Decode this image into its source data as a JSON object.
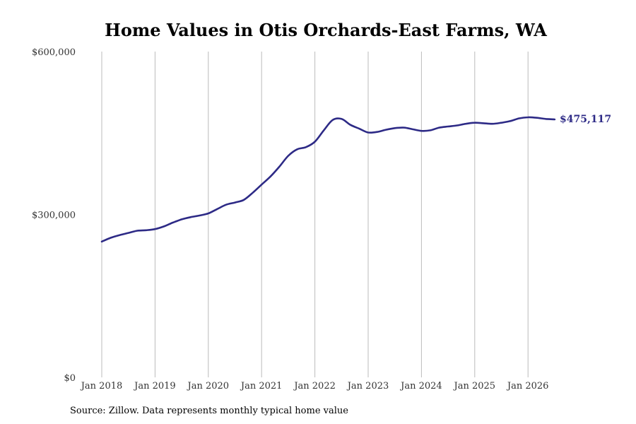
{
  "title": "Home Values in Otis Orchards-East Farms, WA",
  "source": "Source: Zillow. Data represents monthly typical home value",
  "colors": {
    "line": "#2d2a86",
    "grid": "#bbbbbb",
    "text": "#333333"
  },
  "chart_data": {
    "type": "line",
    "title": "Home Values in Otis Orchards-East Farms, WA",
    "xlabel": "",
    "ylabel": "",
    "ylim": [
      0,
      600000
    ],
    "y_ticks": [
      0,
      300000,
      600000
    ],
    "y_tick_labels": [
      "$0",
      "$300,000",
      "$600,000"
    ],
    "x_ticks": [
      2018,
      2019,
      2020,
      2021,
      2022,
      2023,
      2024,
      2025,
      2026
    ],
    "x_tick_labels": [
      "Jan 2018",
      "Jan 2019",
      "Jan 2020",
      "Jan 2021",
      "Jan 2022",
      "Jan 2023",
      "Jan 2024",
      "Jan 2025",
      "Jan 2026"
    ],
    "grid": "vertical",
    "end_label": "$475,117",
    "series": [
      {
        "x": [
          "2018-01",
          "2018-03",
          "2018-05",
          "2018-07",
          "2018-09",
          "2018-11",
          "2019-01",
          "2019-03",
          "2019-05",
          "2019-07",
          "2019-09",
          "2019-11",
          "2020-01",
          "2020-03",
          "2020-05",
          "2020-07",
          "2020-09",
          "2020-11",
          "2021-01",
          "2021-03",
          "2021-05",
          "2021-07",
          "2021-09",
          "2021-11",
          "2022-01",
          "2022-03",
          "2022-05",
          "2022-07",
          "2022-09",
          "2022-11",
          "2023-01",
          "2023-03",
          "2023-05",
          "2023-07",
          "2023-09",
          "2023-11",
          "2024-01",
          "2024-03",
          "2024-05",
          "2024-07",
          "2024-09",
          "2024-11",
          "2025-01",
          "2025-03",
          "2025-05",
          "2025-07",
          "2025-09",
          "2025-11",
          "2026-01",
          "2026-03",
          "2026-05",
          "2026-07"
        ],
        "y": [
          250000,
          257000,
          262000,
          266000,
          270000,
          271000,
          273000,
          278000,
          285000,
          291000,
          295000,
          298000,
          302000,
          310000,
          318000,
          322000,
          327000,
          340000,
          355000,
          370000,
          388000,
          408000,
          420000,
          424000,
          434000,
          455000,
          474000,
          476000,
          465000,
          458000,
          451000,
          452000,
          456000,
          459000,
          460000,
          457000,
          454000,
          455000,
          460000,
          462000,
          464000,
          467000,
          469000,
          468000,
          467000,
          469000,
          472000,
          477000,
          479000,
          478000,
          476000,
          475117
        ]
      }
    ]
  }
}
